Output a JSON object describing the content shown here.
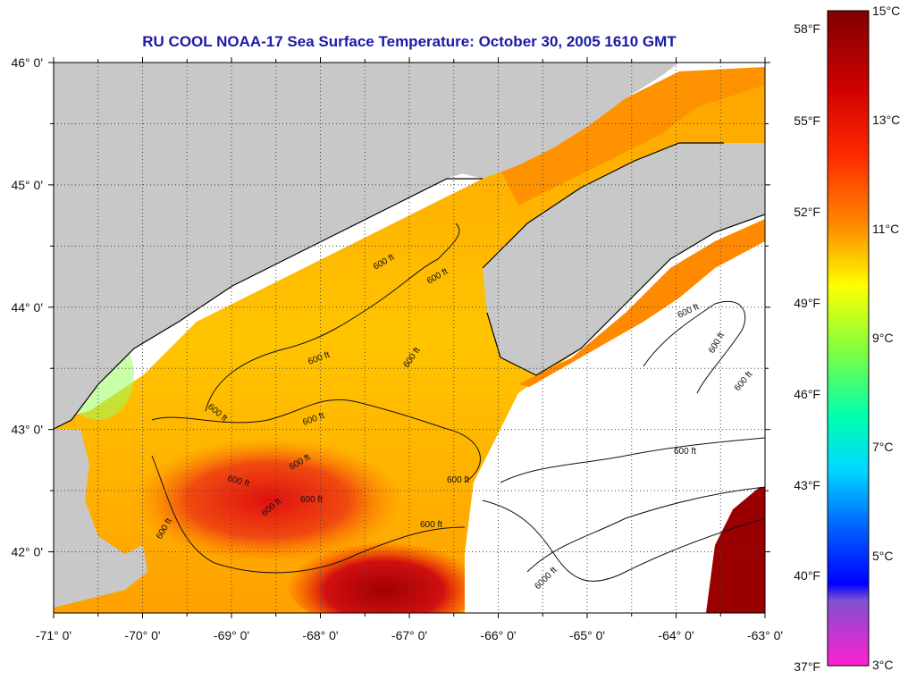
{
  "title": "RU COOL  NOAA-17  Sea Surface Temperature:  October 30, 2005 1610 GMT",
  "map": {
    "lon_range": [
      -71,
      -63
    ],
    "lat_range": [
      41.5,
      46
    ],
    "lon_ticks": [
      {
        "value": -71,
        "label": "-71° 0'"
      },
      {
        "value": -70,
        "label": "-70° 0'"
      },
      {
        "value": -69,
        "label": "-69° 0'"
      },
      {
        "value": -68,
        "label": "-68° 0'"
      },
      {
        "value": -67,
        "label": "-67° 0'"
      },
      {
        "value": -66,
        "label": "-66° 0'"
      },
      {
        "value": -65,
        "label": "-65° 0'"
      },
      {
        "value": -64,
        "label": "-64° 0'"
      },
      {
        "value": -63,
        "label": "-63° 0'"
      }
    ],
    "lat_ticks": [
      {
        "value": 46,
        "label": "46° 0'"
      },
      {
        "value": 45,
        "label": "45° 0'"
      },
      {
        "value": 44,
        "label": "44° 0'"
      },
      {
        "value": 43,
        "label": "43° 0'"
      },
      {
        "value": 42,
        "label": "42° 0'"
      }
    ],
    "grid": "dotted",
    "land_color": "#c8c8c8",
    "no_data_color": "#ffffff",
    "contour_labels": [
      "600 ft",
      "6000 ft"
    ]
  },
  "colorbar": {
    "fahrenheit_labels": [
      "58°F",
      "55°F",
      "52°F",
      "49°F",
      "46°F",
      "43°F",
      "40°F",
      "37°F"
    ],
    "celsius_labels": [
      "15°C",
      "13°C",
      "11°C",
      "9°C",
      "7°C",
      "5°C",
      "3°C"
    ],
    "colors": [
      "#8b0000",
      "#ff0000",
      "#ff7f00",
      "#ffff00",
      "#00ff7f",
      "#00ffff",
      "#0000ff",
      "#ff00ff"
    ]
  }
}
